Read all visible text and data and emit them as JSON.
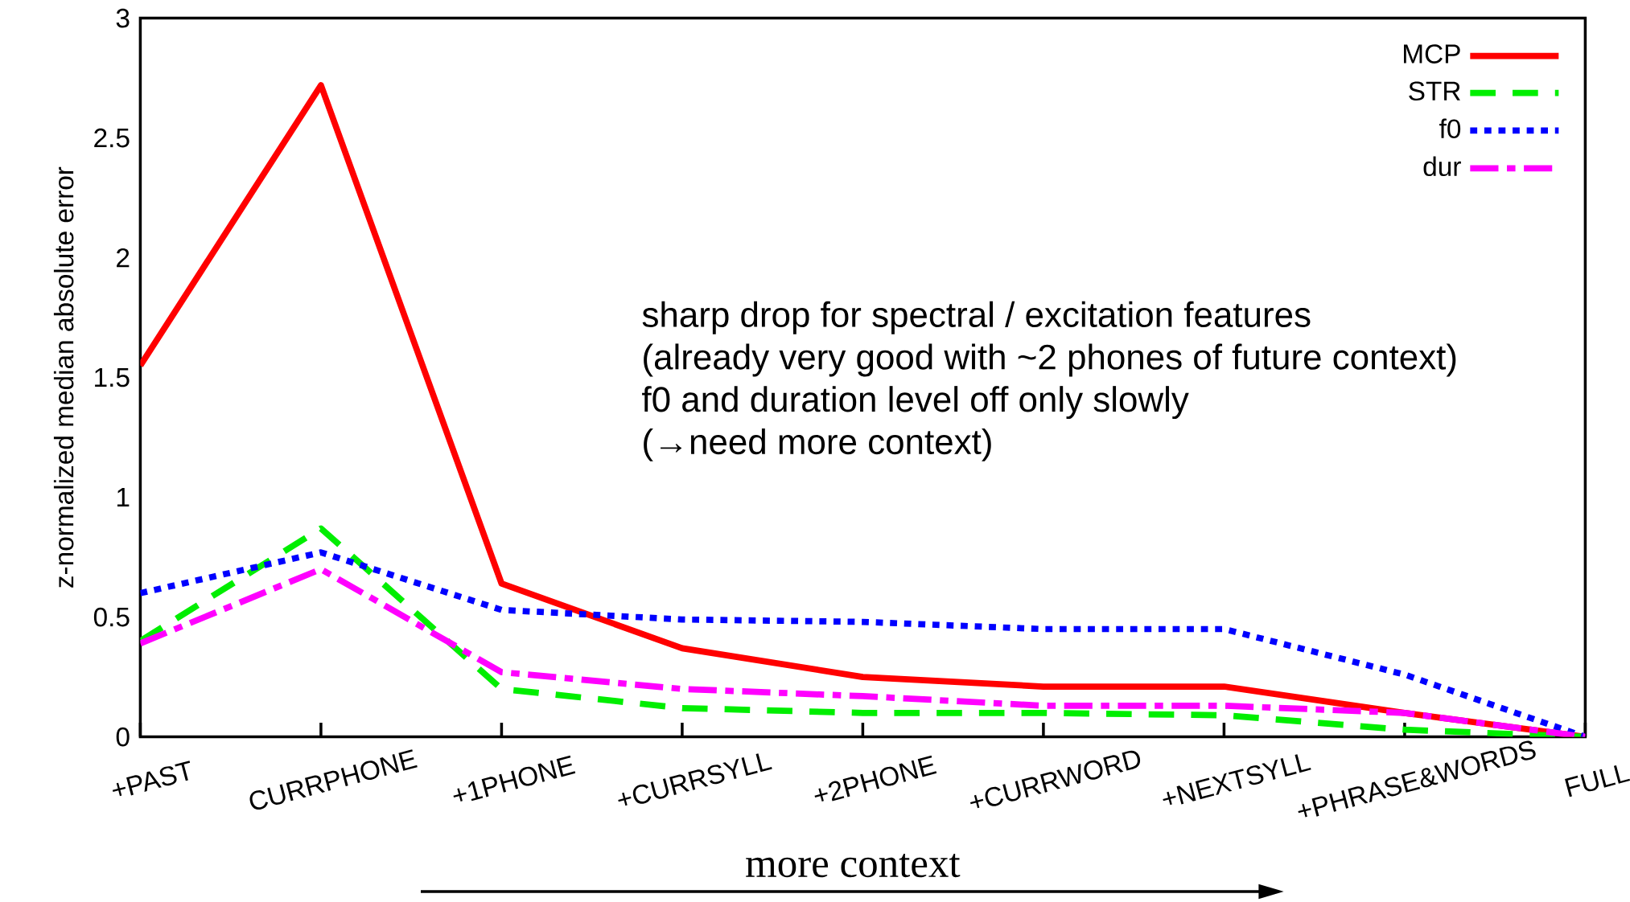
{
  "chart_data": {
    "type": "line",
    "xlabel": "more context",
    "ylabel": "z-normalized median absolute error",
    "categories": [
      "+PAST",
      "CURRPHONE",
      "+1PHONE",
      "+CURRSYLL",
      "+2PHONE",
      "+CURRWORD",
      "+NEXTSYLL",
      "+PHRASE&WORDS",
      "FULL"
    ],
    "series": [
      {
        "name": "MCP",
        "color": "#ff0000",
        "line_style": "solid",
        "values": [
          1.55,
          2.72,
          0.64,
          0.37,
          0.25,
          0.21,
          0.21,
          0.1,
          0
        ]
      },
      {
        "name": "STR",
        "color": "#00ee00",
        "line_style": "dashed",
        "values": [
          0.4,
          0.87,
          0.2,
          0.12,
          0.1,
          0.1,
          0.09,
          0.03,
          0
        ]
      },
      {
        "name": "f0",
        "color": "#0000ff",
        "line_style": "dotted",
        "values": [
          0.6,
          0.77,
          0.53,
          0.49,
          0.48,
          0.45,
          0.45,
          0.26,
          0
        ]
      },
      {
        "name": "dur",
        "color": "#ff00ff",
        "line_style": "dashdot",
        "values": [
          0.39,
          0.7,
          0.27,
          0.2,
          0.17,
          0.13,
          0.13,
          0.1,
          0
        ]
      }
    ],
    "ylim": [
      0,
      3
    ],
    "yticks": [
      0,
      0.5,
      1,
      1.5,
      2,
      2.5,
      3
    ],
    "grid": false,
    "legend": "top right",
    "marker": "none",
    "annotations": [
      "sharp drop for spectral / excitation features",
      "(already very good with ~2 phones of future context)",
      "f0 and duration level off only slowly",
      "(→need more context)"
    ]
  }
}
